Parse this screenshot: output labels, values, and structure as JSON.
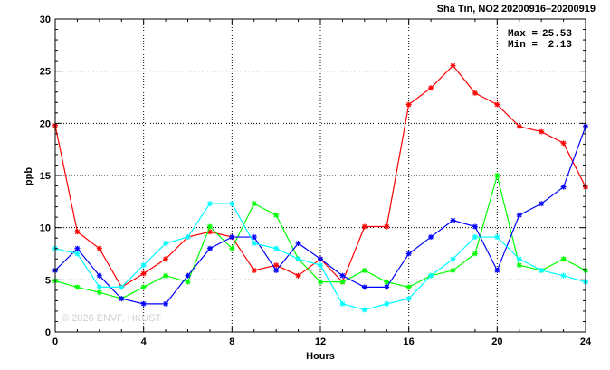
{
  "chart_data": {
    "type": "line",
    "title": "Sha Tin, NO2 20200916–20200919",
    "xlabel": "Hours",
    "ylabel": "ppb",
    "xlim": [
      0,
      24
    ],
    "ylim": [
      0,
      30
    ],
    "xticks": [
      0,
      4,
      8,
      12,
      16,
      20,
      24
    ],
    "yticks": [
      0,
      5,
      10,
      15,
      20,
      25,
      30
    ],
    "grid": true,
    "stats": {
      "max_label": "Max =",
      "max_value": "25.53",
      "min_label": "Min =",
      "min_value": "2.13"
    },
    "watermark": "© 2026 ENVF, HKUST",
    "series": [
      {
        "color": "#ff0000",
        "values": [
          19.8,
          9.6,
          8.0,
          4.3,
          5.6,
          7.0,
          9.1,
          9.6,
          9.1,
          5.9,
          6.4,
          5.4,
          7.0,
          4.8,
          10.1,
          10.1,
          21.8,
          23.4,
          25.53,
          22.9,
          21.8,
          19.7,
          19.2,
          18.1,
          13.9
        ]
      },
      {
        "color": "#00ff00",
        "values": [
          4.9,
          4.3,
          3.8,
          3.2,
          4.3,
          5.4,
          4.8,
          10.1,
          8.0,
          12.3,
          11.2,
          7.0,
          4.8,
          4.8,
          5.9,
          4.8,
          4.3,
          5.4,
          5.9,
          7.5,
          15.0,
          6.4,
          5.9,
          7.0,
          5.9
        ]
      },
      {
        "color": "#0000ff",
        "values": [
          5.9,
          8.0,
          5.4,
          3.2,
          2.7,
          2.7,
          5.4,
          8.0,
          9.1,
          9.1,
          5.9,
          8.5,
          7.0,
          5.4,
          4.3,
          4.3,
          7.5,
          9.1,
          10.7,
          10.1,
          5.9,
          11.2,
          12.3,
          13.9,
          19.7
        ]
      },
      {
        "color": "#00ffff",
        "values": [
          8.0,
          7.5,
          4.3,
          4.3,
          6.4,
          8.5,
          9.1,
          12.3,
          12.3,
          8.5,
          8.0,
          7.0,
          6.4,
          2.7,
          2.13,
          2.7,
          3.2,
          5.4,
          7.0,
          9.1,
          9.1,
          7.0,
          5.9,
          5.4,
          4.8
        ]
      }
    ]
  }
}
